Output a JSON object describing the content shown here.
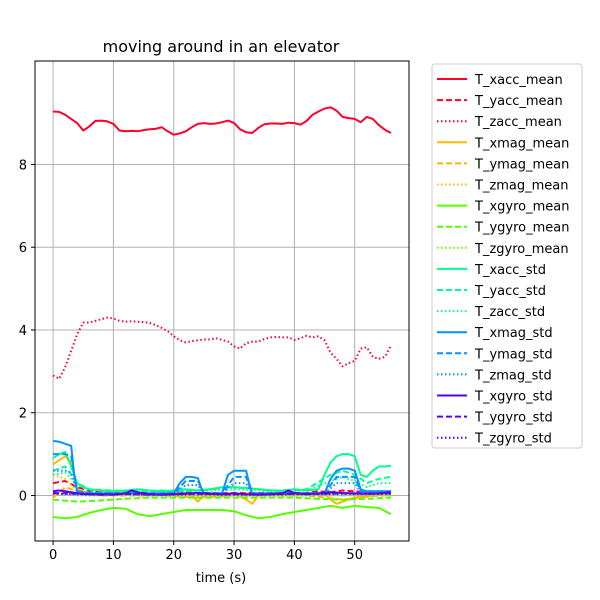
{
  "chart_data": {
    "type": "line",
    "title": "moving around in an elevator",
    "xlabel": "time (s)",
    "ylabel": "",
    "xlim": [
      -3,
      59
    ],
    "ylim": [
      -1.1,
      10.5
    ],
    "xticks": [
      0,
      10,
      20,
      30,
      40,
      50
    ],
    "yticks": [
      0,
      2,
      4,
      6,
      8
    ],
    "grid": true,
    "legend_position": "outside-right",
    "series": [
      {
        "name": "T_xacc_mean",
        "color": "#ff0029",
        "dash": "solid",
        "x": [
          0,
          1,
          2,
          3,
          4,
          5,
          6,
          7,
          8,
          9,
          10,
          11,
          12,
          13,
          14,
          15,
          16,
          17,
          18,
          19,
          20,
          21,
          22,
          23,
          24,
          25,
          26,
          27,
          28,
          29,
          30,
          31,
          32,
          33,
          34,
          35,
          36,
          37,
          38,
          39,
          40,
          41,
          42,
          43,
          44,
          45,
          46,
          47,
          48,
          49,
          50,
          51,
          52,
          53,
          54,
          55,
          56
        ],
        "y": [
          9.28,
          9.27,
          9.2,
          9.1,
          9.0,
          8.82,
          8.92,
          9.05,
          9.06,
          9.04,
          8.98,
          8.82,
          8.8,
          8.81,
          8.8,
          8.83,
          8.85,
          8.86,
          8.9,
          8.8,
          8.72,
          8.75,
          8.8,
          8.9,
          8.98,
          9.0,
          8.98,
          8.99,
          9.02,
          9.06,
          9.0,
          8.85,
          8.78,
          8.76,
          8.88,
          8.97,
          8.99,
          8.99,
          8.98,
          9.01,
          9.0,
          8.96,
          9.05,
          9.2,
          9.28,
          9.35,
          9.38,
          9.3,
          9.15,
          9.12,
          9.1,
          9.02,
          9.15,
          9.1,
          8.95,
          8.84,
          8.76
        ]
      },
      {
        "name": "T_yacc_mean",
        "color": "#ff0029",
        "dash": "dashed",
        "x": [
          0,
          2,
          4,
          6,
          8,
          10,
          12,
          14,
          16,
          18,
          20,
          22,
          24,
          26,
          28,
          30,
          32,
          34,
          36,
          38,
          40,
          42,
          44,
          46,
          48,
          50,
          52,
          54,
          56
        ],
        "y": [
          0.3,
          0.35,
          0.2,
          0.12,
          0.1,
          0.08,
          0.08,
          0.06,
          0.06,
          0.08,
          0.08,
          0.08,
          0.06,
          0.06,
          0.06,
          0.06,
          0.06,
          0.06,
          0.06,
          0.06,
          0.06,
          0.06,
          0.1,
          0.08,
          0.12,
          0.1,
          0.08,
          0.08,
          0.1
        ]
      },
      {
        "name": "T_zacc_mean",
        "color": "#ff0029",
        "dash": "dotted",
        "x": [
          0,
          1,
          2,
          3,
          4,
          5,
          6,
          7,
          8,
          9,
          10,
          11,
          12,
          13,
          14,
          15,
          16,
          17,
          18,
          19,
          20,
          21,
          22,
          23,
          24,
          25,
          26,
          27,
          28,
          29,
          30,
          31,
          32,
          33,
          34,
          35,
          36,
          37,
          38,
          39,
          40,
          41,
          42,
          43,
          44,
          45,
          46,
          47,
          48,
          49,
          50,
          51,
          52,
          53,
          54,
          55,
          56
        ],
        "y": [
          2.9,
          2.82,
          3.1,
          3.5,
          3.9,
          4.18,
          4.18,
          4.22,
          4.26,
          4.3,
          4.28,
          4.22,
          4.2,
          4.21,
          4.2,
          4.19,
          4.17,
          4.12,
          4.05,
          3.97,
          3.85,
          3.75,
          3.7,
          3.73,
          3.75,
          3.77,
          3.77,
          3.8,
          3.76,
          3.72,
          3.6,
          3.55,
          3.68,
          3.72,
          3.72,
          3.78,
          3.82,
          3.83,
          3.82,
          3.82,
          3.76,
          3.8,
          3.86,
          3.82,
          3.85,
          3.75,
          3.45,
          3.3,
          3.12,
          3.2,
          3.25,
          3.55,
          3.58,
          3.35,
          3.3,
          3.35,
          3.62
        ]
      },
      {
        "name": "T_xmag_mean",
        "color": "#ffb700",
        "dash": "solid",
        "x": [
          0,
          1,
          2,
          3,
          4,
          6,
          10,
          15,
          20,
          23,
          24,
          25,
          30,
          32,
          33,
          34,
          40,
          45,
          46,
          47,
          48,
          50,
          53,
          56
        ],
        "y": [
          0.75,
          0.85,
          0.95,
          0.8,
          0.15,
          0.05,
          0.05,
          0.05,
          0.05,
          0.0,
          -0.15,
          0.0,
          0.05,
          -0.1,
          -0.2,
          0.0,
          0.05,
          0.05,
          -0.1,
          -0.2,
          -0.15,
          -0.05,
          0.0,
          0.05
        ]
      },
      {
        "name": "T_ymag_mean",
        "color": "#ffb700",
        "dash": "dashed",
        "x": [
          0,
          2,
          4,
          8,
          12,
          18,
          24,
          30,
          36,
          42,
          48,
          54,
          56
        ],
        "y": [
          -0.05,
          0.2,
          0.1,
          0.0,
          0.0,
          0.0,
          -0.05,
          0.0,
          0.0,
          0.0,
          -0.1,
          0.0,
          0.0
        ]
      },
      {
        "name": "T_zmag_mean",
        "color": "#ffb700",
        "dash": "dotted",
        "x": [
          0,
          2,
          4,
          8,
          12,
          18,
          24,
          30,
          36,
          42,
          48,
          54,
          56
        ],
        "y": [
          0.5,
          0.4,
          0.1,
          0.05,
          0.05,
          0.05,
          0.05,
          0.05,
          0.05,
          0.05,
          0.05,
          0.05,
          0.05
        ]
      },
      {
        "name": "T_xgyro_mean",
        "color": "#55ff00",
        "dash": "solid",
        "x": [
          0,
          2,
          4,
          6,
          8,
          10,
          12,
          14,
          16,
          18,
          20,
          22,
          24,
          26,
          28,
          30,
          32,
          34,
          36,
          38,
          40,
          42,
          44,
          46,
          48,
          50,
          52,
          54,
          56
        ],
        "y": [
          -0.52,
          -0.55,
          -0.52,
          -0.42,
          -0.35,
          -0.3,
          -0.32,
          -0.45,
          -0.5,
          -0.45,
          -0.4,
          -0.35,
          -0.35,
          -0.35,
          -0.35,
          -0.38,
          -0.48,
          -0.55,
          -0.52,
          -0.45,
          -0.4,
          -0.35,
          -0.3,
          -0.25,
          -0.3,
          -0.25,
          -0.28,
          -0.3,
          -0.45
        ]
      },
      {
        "name": "T_ygyro_mean",
        "color": "#55ff00",
        "dash": "dashed",
        "x": [
          0,
          4,
          8,
          12,
          16,
          20,
          24,
          28,
          32,
          36,
          40,
          44,
          48,
          52,
          56
        ],
        "y": [
          -0.1,
          -0.15,
          -0.12,
          -0.08,
          -0.05,
          -0.05,
          -0.05,
          -0.05,
          -0.05,
          -0.05,
          -0.05,
          -0.08,
          -0.1,
          -0.08,
          -0.05
        ]
      },
      {
        "name": "T_zgyro_mean",
        "color": "#55ff00",
        "dash": "dotted",
        "x": [
          0,
          4,
          8,
          12,
          16,
          20,
          24,
          28,
          32,
          36,
          40,
          44,
          48,
          52,
          56
        ],
        "y": [
          0.05,
          0.0,
          0.0,
          0.02,
          0.0,
          0.0,
          0.0,
          0.0,
          0.0,
          0.0,
          0.0,
          0.0,
          0.0,
          0.0,
          0.0
        ]
      },
      {
        "name": "T_xacc_std",
        "color": "#00ff8c",
        "dash": "solid",
        "x": [
          0,
          1,
          2,
          3,
          4,
          5,
          6,
          8,
          10,
          12,
          14,
          16,
          18,
          20,
          22,
          24,
          26,
          28,
          30,
          32,
          34,
          36,
          38,
          40,
          42,
          44,
          45,
          46,
          47,
          48,
          49,
          50,
          51,
          52,
          53,
          54,
          55,
          56
        ],
        "y": [
          0.9,
          1.0,
          1.05,
          0.7,
          0.3,
          0.2,
          0.15,
          0.12,
          0.1,
          0.12,
          0.15,
          0.12,
          0.1,
          0.12,
          0.15,
          0.12,
          0.15,
          0.2,
          0.2,
          0.18,
          0.15,
          0.12,
          0.12,
          0.15,
          0.12,
          0.15,
          0.5,
          0.8,
          0.95,
          1.0,
          1.0,
          0.95,
          0.5,
          0.45,
          0.6,
          0.7,
          0.7,
          0.72
        ]
      },
      {
        "name": "T_yacc_std",
        "color": "#00ff8c",
        "dash": "dashed",
        "x": [
          0,
          2,
          4,
          6,
          10,
          14,
          18,
          22,
          26,
          30,
          34,
          38,
          42,
          46,
          48,
          50,
          52,
          54,
          56
        ],
        "y": [
          0.6,
          0.7,
          0.3,
          0.15,
          0.12,
          0.1,
          0.12,
          0.1,
          0.15,
          0.2,
          0.15,
          0.1,
          0.15,
          0.5,
          0.6,
          0.5,
          0.3,
          0.4,
          0.45
        ]
      },
      {
        "name": "T_zacc_std",
        "color": "#00ff8c",
        "dash": "dotted",
        "x": [
          0,
          2,
          4,
          6,
          10,
          14,
          18,
          22,
          26,
          30,
          34,
          38,
          42,
          46,
          48,
          50,
          52,
          54,
          56
        ],
        "y": [
          0.5,
          0.55,
          0.25,
          0.12,
          0.1,
          0.08,
          0.1,
          0.08,
          0.12,
          0.15,
          0.12,
          0.08,
          0.12,
          0.35,
          0.45,
          0.35,
          0.2,
          0.3,
          0.3
        ]
      },
      {
        "name": "T_xmag_std",
        "color": "#0094ff",
        "dash": "solid",
        "x": [
          0,
          1,
          2,
          3,
          3.5,
          4,
          5,
          10,
          15,
          20,
          21,
          22,
          23,
          24,
          24.5,
          25,
          28,
          29,
          30,
          31,
          32,
          32.5,
          33,
          35,
          40,
          45,
          46,
          47,
          48,
          49,
          50,
          51,
          52,
          54,
          56
        ],
        "y": [
          1.32,
          1.3,
          1.25,
          1.2,
          0.5,
          0.1,
          0.05,
          0.05,
          0.05,
          0.05,
          0.3,
          0.45,
          0.45,
          0.42,
          0.2,
          0.05,
          0.05,
          0.5,
          0.6,
          0.6,
          0.6,
          0.3,
          0.05,
          0.05,
          0.05,
          0.05,
          0.4,
          0.6,
          0.65,
          0.65,
          0.6,
          0.15,
          0.1,
          0.1,
          0.1
        ]
      },
      {
        "name": "T_ymag_std",
        "color": "#0094ff",
        "dash": "dashed",
        "x": [
          0,
          2,
          3,
          4,
          8,
          15,
          20,
          22,
          24,
          25,
          28,
          30,
          32,
          33,
          40,
          45,
          47,
          50,
          51,
          56
        ],
        "y": [
          1.0,
          1.0,
          0.95,
          0.1,
          0.05,
          0.05,
          0.05,
          0.35,
          0.35,
          0.05,
          0.05,
          0.45,
          0.45,
          0.05,
          0.05,
          0.05,
          0.45,
          0.45,
          0.1,
          0.1
        ]
      },
      {
        "name": "T_zmag_std",
        "color": "#0094ff",
        "dash": "dotted",
        "x": [
          0,
          2,
          3,
          4,
          8,
          15,
          20,
          22,
          24,
          25,
          28,
          30,
          32,
          33,
          40,
          45,
          47,
          50,
          51,
          56
        ],
        "y": [
          0.6,
          0.6,
          0.55,
          0.08,
          0.04,
          0.04,
          0.04,
          0.25,
          0.25,
          0.04,
          0.04,
          0.3,
          0.3,
          0.04,
          0.04,
          0.04,
          0.3,
          0.3,
          0.08,
          0.08
        ]
      },
      {
        "name": "T_xgyro_std",
        "color": "#5500ff",
        "dash": "solid",
        "x": [
          0,
          1,
          2,
          3,
          4,
          6,
          8,
          10,
          12,
          13,
          14,
          16,
          18,
          20,
          22,
          24,
          26,
          28,
          30,
          32,
          34,
          36,
          38,
          39,
          40,
          42,
          44,
          46,
          48,
          50,
          52,
          54,
          56
        ],
        "y": [
          0.1,
          0.12,
          0.1,
          0.08,
          0.05,
          0.03,
          0.03,
          0.02,
          0.05,
          0.12,
          0.08,
          0.03,
          0.02,
          0.03,
          0.05,
          0.06,
          0.04,
          0.03,
          0.05,
          0.03,
          0.02,
          0.03,
          0.05,
          0.12,
          0.06,
          0.03,
          0.05,
          0.08,
          0.06,
          0.05,
          0.04,
          0.05,
          0.08
        ]
      },
      {
        "name": "T_ygyro_std",
        "color": "#5500ff",
        "dash": "dashed",
        "x": [
          0,
          4,
          8,
          12,
          16,
          20,
          24,
          28,
          32,
          36,
          40,
          44,
          48,
          52,
          56
        ],
        "y": [
          0.06,
          0.04,
          0.02,
          0.04,
          0.02,
          0.03,
          0.04,
          0.03,
          0.03,
          0.03,
          0.04,
          0.04,
          0.05,
          0.04,
          0.05
        ]
      },
      {
        "name": "T_zgyro_std",
        "color": "#5500ff",
        "dash": "dotted",
        "x": [
          0,
          4,
          8,
          12,
          16,
          20,
          24,
          28,
          32,
          36,
          40,
          44,
          48,
          52,
          56
        ],
        "y": [
          0.04,
          0.03,
          0.02,
          0.03,
          0.02,
          0.02,
          0.03,
          0.02,
          0.02,
          0.02,
          0.03,
          0.03,
          0.04,
          0.03,
          0.04
        ]
      }
    ]
  }
}
